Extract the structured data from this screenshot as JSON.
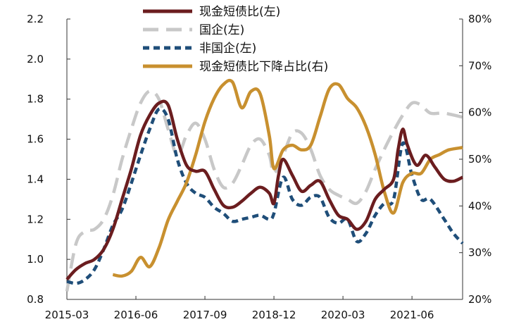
{
  "chart_data": {
    "type": "line",
    "title": "",
    "xlabel": "",
    "ylabel_left": "",
    "ylabel_right": "",
    "x_ticks": [
      "2015-03",
      "2016-06",
      "2017-09",
      "2018-12",
      "2020-03",
      "2021-06"
    ],
    "x_range": [
      "2015-03",
      "2022-05"
    ],
    "ylim_left": [
      0.8,
      2.2
    ],
    "yticks_left": [
      "0.8",
      "1.0",
      "1.2",
      "1.4",
      "1.6",
      "1.8",
      "2.0",
      "2.2"
    ],
    "ylim_right": [
      20,
      80
    ],
    "yticks_right": [
      "20%",
      "30%",
      "40%",
      "50%",
      "60%",
      "70%",
      "80%"
    ],
    "grid": false,
    "legend_position": "top-center",
    "series": [
      {
        "name": "现金短债比(左)",
        "axis": "left",
        "color": "#6b1d1f",
        "style": "solid",
        "points": [
          [
            "2015-03",
            0.9
          ],
          [
            "2015-05",
            0.95
          ],
          [
            "2015-07",
            0.98
          ],
          [
            "2015-09",
            1.0
          ],
          [
            "2015-11",
            1.05
          ],
          [
            "2016-01",
            1.15
          ],
          [
            "2016-03",
            1.3
          ],
          [
            "2016-05",
            1.45
          ],
          [
            "2016-07",
            1.62
          ],
          [
            "2016-09",
            1.72
          ],
          [
            "2016-11",
            1.78
          ],
          [
            "2017-01",
            1.77
          ],
          [
            "2017-03",
            1.6
          ],
          [
            "2017-05",
            1.47
          ],
          [
            "2017-07",
            1.44
          ],
          [
            "2017-09",
            1.44
          ],
          [
            "2017-11",
            1.35
          ],
          [
            "2018-01",
            1.27
          ],
          [
            "2018-03",
            1.26
          ],
          [
            "2018-05",
            1.29
          ],
          [
            "2018-07",
            1.33
          ],
          [
            "2018-09",
            1.36
          ],
          [
            "2018-11",
            1.33
          ],
          [
            "2018-12",
            1.28
          ],
          [
            "2019-01",
            1.42
          ],
          [
            "2019-02",
            1.5
          ],
          [
            "2019-04",
            1.42
          ],
          [
            "2019-06",
            1.34
          ],
          [
            "2019-08",
            1.37
          ],
          [
            "2019-10",
            1.39
          ],
          [
            "2019-12",
            1.3
          ],
          [
            "2020-02",
            1.22
          ],
          [
            "2020-04",
            1.2
          ],
          [
            "2020-06",
            1.15
          ],
          [
            "2020-08",
            1.19
          ],
          [
            "2020-10",
            1.3
          ],
          [
            "2020-12",
            1.35
          ],
          [
            "2021-02",
            1.4
          ],
          [
            "2021-03",
            1.55
          ],
          [
            "2021-04",
            1.65
          ],
          [
            "2021-05",
            1.57
          ],
          [
            "2021-07",
            1.47
          ],
          [
            "2021-09",
            1.52
          ],
          [
            "2021-11",
            1.46
          ],
          [
            "2022-01",
            1.4
          ],
          [
            "2022-03",
            1.39
          ],
          [
            "2022-05",
            1.41
          ]
        ]
      },
      {
        "name": "国企(左)",
        "axis": "left",
        "color": "#c8c8c8",
        "style": "long-dash",
        "points": [
          [
            "2015-03",
            0.84
          ],
          [
            "2015-05",
            1.08
          ],
          [
            "2015-07",
            1.14
          ],
          [
            "2015-09",
            1.15
          ],
          [
            "2015-11",
            1.2
          ],
          [
            "2016-01",
            1.32
          ],
          [
            "2016-03",
            1.5
          ],
          [
            "2016-05",
            1.65
          ],
          [
            "2016-07",
            1.78
          ],
          [
            "2016-09",
            1.84
          ],
          [
            "2016-11",
            1.8
          ],
          [
            "2017-01",
            1.65
          ],
          [
            "2017-03",
            1.52
          ],
          [
            "2017-05",
            1.62
          ],
          [
            "2017-07",
            1.68
          ],
          [
            "2017-09",
            1.6
          ],
          [
            "2017-11",
            1.45
          ],
          [
            "2018-01",
            1.36
          ],
          [
            "2018-03",
            1.38
          ],
          [
            "2018-05",
            1.47
          ],
          [
            "2018-07",
            1.57
          ],
          [
            "2018-09",
            1.6
          ],
          [
            "2018-11",
            1.52
          ],
          [
            "2018-12",
            1.43
          ],
          [
            "2019-02",
            1.52
          ],
          [
            "2019-04",
            1.63
          ],
          [
            "2019-06",
            1.63
          ],
          [
            "2019-08",
            1.55
          ],
          [
            "2019-10",
            1.42
          ],
          [
            "2019-12",
            1.35
          ],
          [
            "2020-02",
            1.32
          ],
          [
            "2020-04",
            1.3
          ],
          [
            "2020-06",
            1.28
          ],
          [
            "2020-08",
            1.34
          ],
          [
            "2020-10",
            1.45
          ],
          [
            "2020-12",
            1.55
          ],
          [
            "2021-02",
            1.64
          ],
          [
            "2021-04",
            1.72
          ],
          [
            "2021-06",
            1.78
          ],
          [
            "2021-08",
            1.77
          ],
          [
            "2021-10",
            1.73
          ],
          [
            "2022-01",
            1.73
          ],
          [
            "2022-05",
            1.71
          ]
        ]
      },
      {
        "name": "非国企(左)",
        "axis": "left",
        "color": "#1f4e79",
        "style": "short-dash",
        "points": [
          [
            "2015-03",
            0.89
          ],
          [
            "2015-05",
            0.88
          ],
          [
            "2015-07",
            0.9
          ],
          [
            "2015-09",
            0.95
          ],
          [
            "2015-11",
            1.05
          ],
          [
            "2016-01",
            1.17
          ],
          [
            "2016-03",
            1.25
          ],
          [
            "2016-05",
            1.38
          ],
          [
            "2016-07",
            1.52
          ],
          [
            "2016-09",
            1.65
          ],
          [
            "2016-11",
            1.75
          ],
          [
            "2017-01",
            1.7
          ],
          [
            "2017-03",
            1.5
          ],
          [
            "2017-05",
            1.38
          ],
          [
            "2017-07",
            1.33
          ],
          [
            "2017-09",
            1.31
          ],
          [
            "2017-11",
            1.26
          ],
          [
            "2018-01",
            1.23
          ],
          [
            "2018-03",
            1.19
          ],
          [
            "2018-05",
            1.2
          ],
          [
            "2018-07",
            1.21
          ],
          [
            "2018-09",
            1.22
          ],
          [
            "2018-11",
            1.2
          ],
          [
            "2018-12",
            1.23
          ],
          [
            "2019-02",
            1.41
          ],
          [
            "2019-04",
            1.3
          ],
          [
            "2019-06",
            1.27
          ],
          [
            "2019-08",
            1.31
          ],
          [
            "2019-10",
            1.31
          ],
          [
            "2019-12",
            1.21
          ],
          [
            "2020-02",
            1.18
          ],
          [
            "2020-04",
            1.2
          ],
          [
            "2020-06",
            1.09
          ],
          [
            "2020-08",
            1.13
          ],
          [
            "2020-10",
            1.22
          ],
          [
            "2020-12",
            1.28
          ],
          [
            "2021-02",
            1.3
          ],
          [
            "2021-04",
            1.58
          ],
          [
            "2021-06",
            1.42
          ],
          [
            "2021-08",
            1.3
          ],
          [
            "2021-10",
            1.3
          ],
          [
            "2022-01",
            1.2
          ],
          [
            "2022-03",
            1.13
          ],
          [
            "2022-05",
            1.08
          ]
        ]
      },
      {
        "name": "现金短债比下降占比(右)",
        "axis": "right",
        "color": "#c8902f",
        "style": "solid",
        "points": [
          [
            "2016-01",
            25.3
          ],
          [
            "2016-03",
            25.0
          ],
          [
            "2016-05",
            26.0
          ],
          [
            "2016-07",
            29.0
          ],
          [
            "2016-09",
            27.0
          ],
          [
            "2016-11",
            31.0
          ],
          [
            "2017-01",
            37.0
          ],
          [
            "2017-03",
            41.0
          ],
          [
            "2017-05",
            45.0
          ],
          [
            "2017-07",
            51.0
          ],
          [
            "2017-09",
            58.0
          ],
          [
            "2017-11",
            63.0
          ],
          [
            "2018-01",
            66.0
          ],
          [
            "2018-03",
            66.5
          ],
          [
            "2018-05",
            61.0
          ],
          [
            "2018-07",
            64.5
          ],
          [
            "2018-09",
            64.0
          ],
          [
            "2018-11",
            55.0
          ],
          [
            "2018-12",
            48.0
          ],
          [
            "2019-02",
            52.0
          ],
          [
            "2019-04",
            53.0
          ],
          [
            "2019-06",
            52.0
          ],
          [
            "2019-08",
            53.0
          ],
          [
            "2019-10",
            59.0
          ],
          [
            "2019-12",
            65.0
          ],
          [
            "2020-02",
            66.0
          ],
          [
            "2020-04",
            63.0
          ],
          [
            "2020-06",
            61.0
          ],
          [
            "2020-08",
            57.0
          ],
          [
            "2020-10",
            51.0
          ],
          [
            "2020-12",
            43.0
          ],
          [
            "2021-02",
            38.5
          ],
          [
            "2021-04",
            45.0
          ],
          [
            "2021-06",
            47.0
          ],
          [
            "2021-08",
            47.0
          ],
          [
            "2021-10",
            50.0
          ],
          [
            "2021-12",
            51.0
          ],
          [
            "2022-02",
            52.0
          ],
          [
            "2022-05",
            52.5
          ]
        ]
      }
    ]
  }
}
